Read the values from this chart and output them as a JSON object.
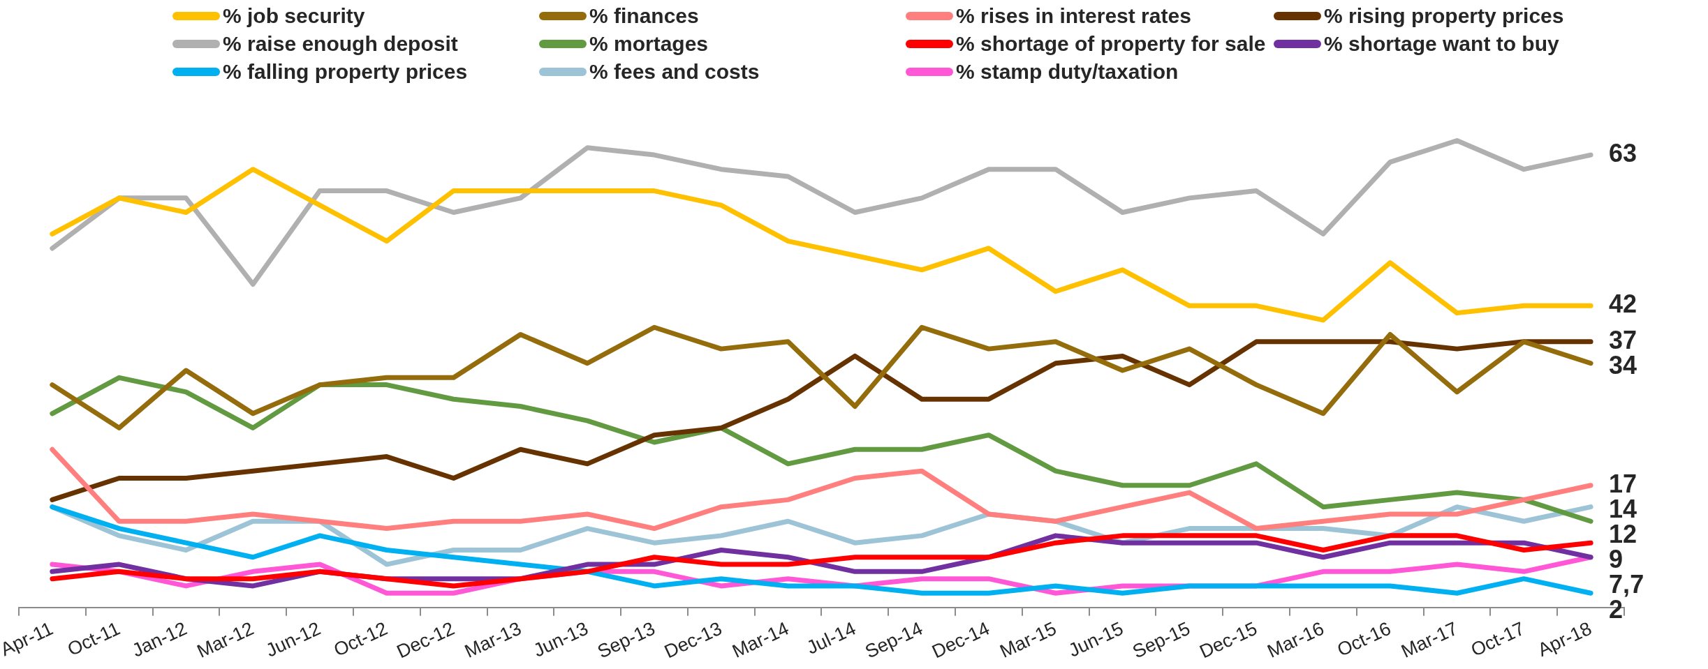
{
  "chart_data": {
    "type": "line",
    "categories": [
      "Apr-11",
      "Oct-11",
      "Jan-12",
      "Mar-12",
      "Jun-12",
      "Oct-12",
      "Dec-12",
      "Mar-13",
      "Jun-13",
      "Sep-13",
      "Dec-13",
      "Mar-14",
      "Jul-14",
      "Sep-14",
      "Dec-14",
      "Mar-15",
      "Jun-15",
      "Sep-15",
      "Dec-15",
      "Mar-16",
      "Oct-16",
      "Mar-17",
      "Oct-17",
      "Apr-18"
    ],
    "tick_labels": "x",
    "grid": false,
    "legend": "top",
    "marker": "none",
    "line_style": "solid",
    "series": [
      {
        "name": "% job security",
        "color": "#ffc000",
        "values": [
          52,
          57,
          55,
          61,
          56,
          51,
          58,
          58,
          58,
          58,
          56,
          51,
          49,
          47,
          50,
          44,
          47,
          42,
          42,
          40,
          48,
          41,
          42,
          42
        ],
        "value_labels": [
          null,
          null,
          null,
          null,
          null,
          null,
          null,
          null,
          null,
          null,
          null,
          null,
          null,
          null,
          null,
          null,
          null,
          null,
          null,
          null,
          null,
          null,
          null,
          "42"
        ]
      },
      {
        "name": "% finances",
        "color": "#946c0c",
        "values": [
          31,
          25,
          33,
          27,
          31,
          32,
          32,
          38,
          34,
          39,
          36,
          37,
          28,
          39,
          36,
          37,
          33,
          36,
          31,
          27,
          38,
          30,
          37,
          34
        ],
        "value_labels": [
          null,
          null,
          null,
          null,
          null,
          null,
          null,
          null,
          null,
          null,
          null,
          null,
          null,
          null,
          null,
          null,
          null,
          null,
          null,
          null,
          null,
          null,
          null,
          "34"
        ]
      },
      {
        "name": "% rises in interest rates",
        "color": "#ff7f7f",
        "values": [
          22,
          12,
          12,
          13,
          12,
          11,
          12,
          12,
          13,
          11,
          14,
          15,
          18,
          19,
          13,
          12,
          14,
          16,
          11,
          12,
          13,
          13,
          15,
          17
        ],
        "value_labels": [
          null,
          null,
          null,
          null,
          null,
          null,
          null,
          null,
          null,
          null,
          null,
          null,
          null,
          null,
          null,
          null,
          null,
          null,
          null,
          null,
          null,
          null,
          null,
          "17"
        ]
      },
      {
        "name": "% rising property prices",
        "color": "#663300",
        "values": [
          15,
          18,
          18,
          19,
          20,
          21,
          18,
          22,
          20,
          24,
          25,
          29,
          35,
          29,
          29,
          34,
          35,
          31,
          37,
          37,
          37,
          36,
          37,
          37
        ],
        "value_labels": [
          null,
          null,
          null,
          null,
          null,
          null,
          null,
          null,
          null,
          null,
          null,
          null,
          null,
          null,
          null,
          null,
          null,
          null,
          null,
          null,
          null,
          null,
          null,
          "37"
        ]
      },
      {
        "name": "% raise enough deposit",
        "color": "#b0b0b0",
        "values": [
          50,
          57,
          57,
          45,
          58,
          58,
          55,
          57,
          64,
          63,
          61,
          60,
          55,
          57,
          61,
          61,
          55,
          57,
          58,
          52,
          62,
          65,
          61,
          63
        ],
        "value_labels": [
          null,
          null,
          null,
          null,
          null,
          null,
          null,
          null,
          null,
          null,
          null,
          null,
          null,
          null,
          null,
          null,
          null,
          null,
          null,
          null,
          null,
          null,
          null,
          "63"
        ]
      },
      {
        "name": "% mortages",
        "color": "#629a41",
        "values": [
          27,
          32,
          30,
          25,
          31,
          31,
          29,
          28,
          26,
          23,
          25,
          20,
          22,
          22,
          24,
          19,
          17,
          17,
          20,
          14,
          15,
          16,
          15,
          12
        ],
        "value_labels": [
          null,
          null,
          null,
          null,
          null,
          null,
          null,
          null,
          null,
          null,
          null,
          null,
          null,
          null,
          null,
          null,
          null,
          null,
          null,
          null,
          null,
          null,
          null,
          "12"
        ]
      },
      {
        "name": "% shortage of property for sale",
        "color": "#ff0000",
        "values": [
          4,
          5,
          4,
          4,
          5,
          4,
          3,
          4,
          5,
          7,
          6,
          6,
          7,
          7,
          7,
          9,
          10,
          10,
          10,
          8,
          10,
          10,
          8,
          9
        ],
        "value_labels": [
          null,
          null,
          null,
          null,
          null,
          null,
          null,
          null,
          null,
          null,
          null,
          null,
          null,
          null,
          null,
          null,
          null,
          null,
          null,
          null,
          null,
          null,
          null,
          "9"
        ]
      },
      {
        "name": "% shortage want to buy",
        "color": "#7030a0",
        "values": [
          5,
          6,
          4,
          3,
          5,
          4,
          4,
          4,
          6,
          6,
          8,
          7,
          5,
          5,
          7,
          10,
          9,
          9,
          9,
          7,
          9,
          9,
          9,
          7
        ]
      },
      {
        "name": "% falling property prices",
        "color": "#00b0f0",
        "values": [
          14,
          11,
          9,
          7,
          10,
          8,
          7,
          6,
          5,
          3,
          4,
          3,
          3,
          2,
          2,
          3,
          2,
          3,
          3,
          3,
          3,
          2,
          4,
          2
        ],
        "value_labels": [
          null,
          null,
          null,
          null,
          null,
          null,
          null,
          null,
          null,
          null,
          null,
          null,
          null,
          null,
          null,
          null,
          null,
          null,
          null,
          null,
          null,
          null,
          null,
          "2"
        ]
      },
      {
        "name": "% fees and costs",
        "color": "#9dc3d6",
        "values": [
          14,
          10,
          8,
          12,
          12,
          6,
          8,
          8,
          11,
          9,
          10,
          12,
          9,
          10,
          13,
          12,
          9,
          11,
          11,
          11,
          10,
          14,
          12,
          14
        ],
        "value_labels": [
          null,
          null,
          null,
          null,
          null,
          null,
          null,
          null,
          null,
          null,
          null,
          null,
          null,
          null,
          null,
          null,
          null,
          null,
          null,
          null,
          null,
          null,
          null,
          "14"
        ]
      },
      {
        "name": "% stamp duty/taxation",
        "color": "#ff57d6",
        "values": [
          6,
          5,
          3,
          5,
          6,
          2,
          2,
          4,
          5,
          5,
          3,
          4,
          3,
          4,
          4,
          2,
          3,
          3,
          3,
          5,
          5,
          6,
          5,
          7
        ]
      }
    ],
    "annotations": [
      {
        "text": "7,7",
        "x": "Apr-18",
        "y": 7
      }
    ]
  }
}
